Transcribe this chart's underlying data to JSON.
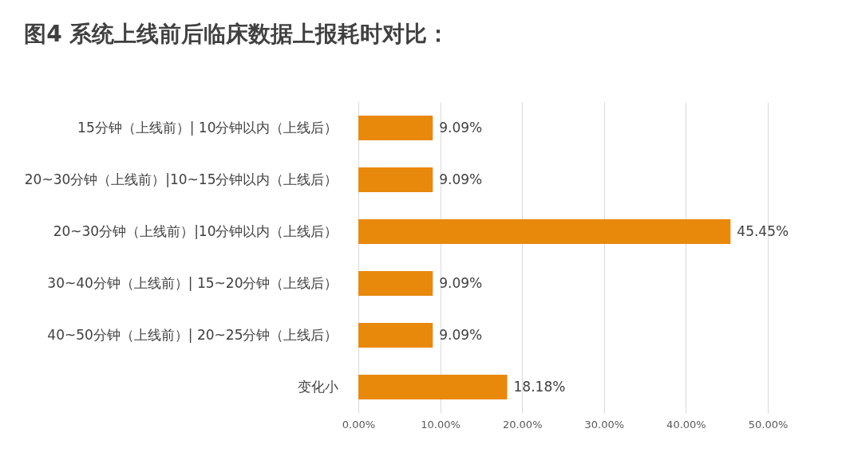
{
  "chart_data": {
    "type": "bar",
    "orientation": "horizontal",
    "title": "图4 系统上线前后临床数据上报耗时对比：",
    "categories": [
      "15分钟（上线前）| 10分钟以内（上线后）",
      "20~30分钟（上线前）|10~15分钟以内（上线后）",
      "20~30分钟（上线前）|10分钟以内（上线后）",
      "30~40分钟（上线前）| 15~20分钟（上线后）",
      "40~50分钟（上线前）| 20~25分钟（上线后）",
      "变化小"
    ],
    "values": [
      9.09,
      9.09,
      45.45,
      9.09,
      9.09,
      18.18
    ],
    "value_labels": [
      "9.09%",
      "9.09%",
      "45.45%",
      "9.09%",
      "9.09%",
      "18.18%"
    ],
    "color": "#e8890c",
    "xlim": [
      0,
      50
    ],
    "xticks": [
      {
        "value": 0,
        "label": "0.00%"
      },
      {
        "value": 10,
        "label": "10.00%"
      },
      {
        "value": 20,
        "label": "20.00%"
      },
      {
        "value": 30,
        "label": "30.00%"
      },
      {
        "value": 40,
        "label": "40.00%"
      },
      {
        "value": 50,
        "label": "50.00%"
      }
    ],
    "grid": "x"
  }
}
